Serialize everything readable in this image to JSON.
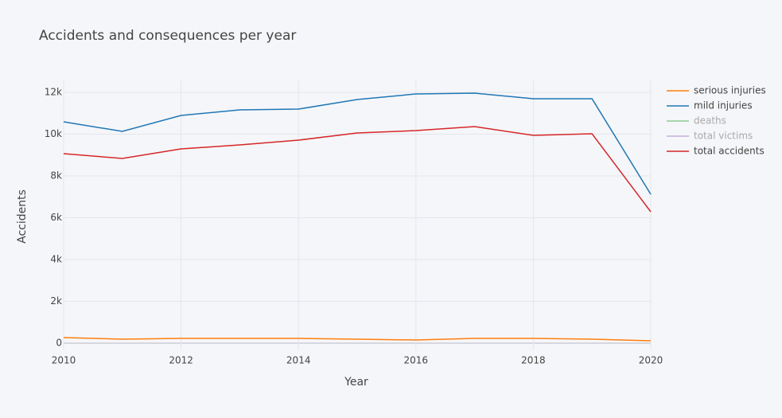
{
  "chart_data": {
    "type": "line",
    "title": "Accidents and consequences per year",
    "x_label": "Year",
    "y_label": "Accidents",
    "x": [
      2010,
      2011,
      2012,
      2013,
      2014,
      2015,
      2016,
      2017,
      2018,
      2019,
      2020
    ],
    "series": [
      {
        "name": "serious injuries",
        "color": "#ff7f0e",
        "values": [
          267,
          190,
          229,
          229,
          229,
          190,
          152,
          229,
          229,
          190,
          114
        ]
      },
      {
        "name": "mild injuries",
        "color": "#1f77b4",
        "values": [
          10590,
          10133,
          10895,
          11162,
          11200,
          11657,
          11924,
          11962,
          11695,
          11695,
          7124
        ]
      },
      {
        "name": "deaths",
        "color": "#2ca02c",
        "visible": false
      },
      {
        "name": "total victims",
        "color": "#9467bd",
        "visible": false
      },
      {
        "name": "total accidents",
        "color": "#d62728",
        "values": [
          9067,
          8838,
          9295,
          9486,
          9714,
          10057,
          10171,
          10362,
          9943,
          10019,
          6286
        ]
      }
    ],
    "xlim": [
      2010,
      2020
    ],
    "xticks": [
      2010,
      2012,
      2014,
      2016,
      2018,
      2020
    ],
    "ylim": [
      -343,
      12610
    ],
    "yticks": [
      0,
      {
        "value": 2000,
        "label": "2k"
      },
      {
        "value": 4000,
        "label": "4k"
      },
      {
        "value": 6000,
        "label": "6k"
      },
      {
        "value": 8000,
        "label": "8k"
      },
      {
        "value": 10000,
        "label": "10k"
      },
      {
        "value": 12000,
        "label": "12k"
      }
    ],
    "grid": true,
    "legend": "right"
  }
}
